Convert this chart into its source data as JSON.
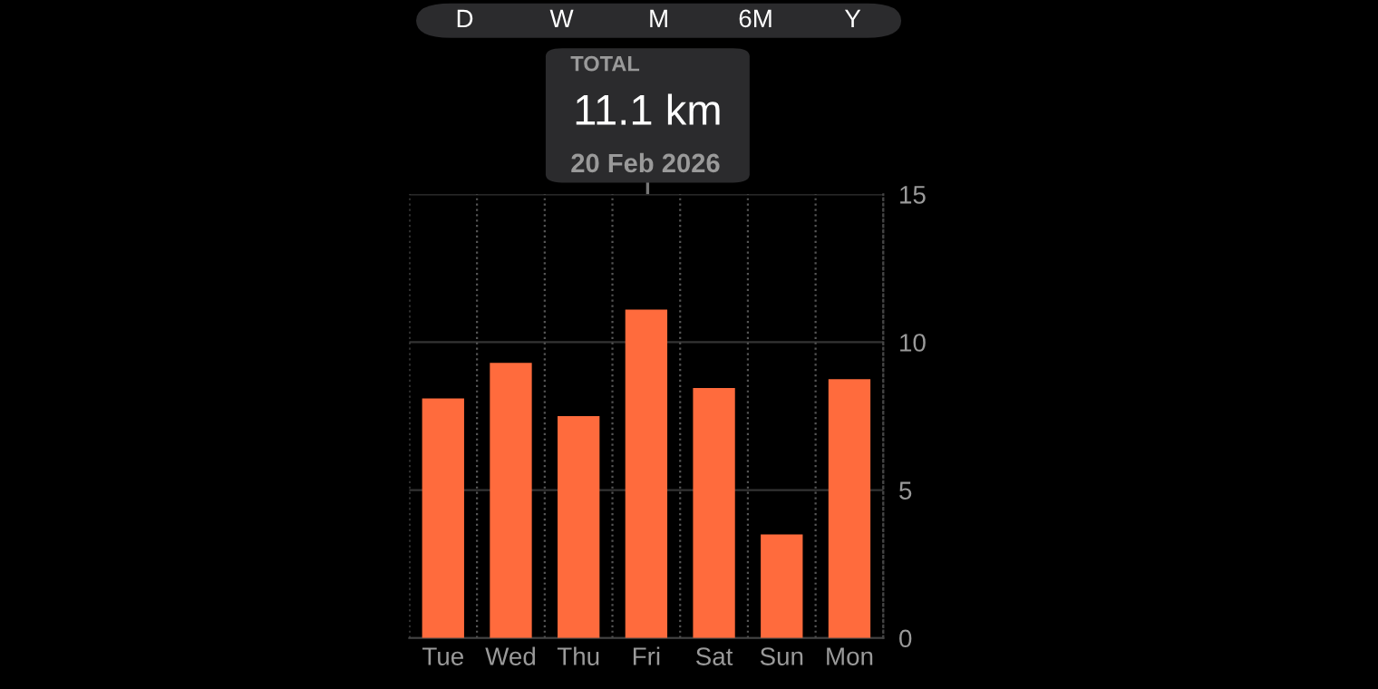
{
  "chart_data": {
    "type": "bar",
    "categories": [
      "Tue",
      "Wed",
      "Thu",
      "Fri",
      "Sat",
      "Sun",
      "Mon"
    ],
    "values": [
      8.1,
      9.3,
      7.5,
      11.1,
      8.45,
      3.5,
      8.75
    ],
    "color": "#ff6b3d",
    "ylim": [
      0,
      15
    ],
    "yticks": [
      0,
      5,
      10,
      15
    ],
    "grid": true,
    "annotations": [
      "D",
      "W",
      "M",
      "6M",
      "Y",
      "TOTAL",
      "11.1 km",
      "20 Feb 2026"
    ]
  }
}
